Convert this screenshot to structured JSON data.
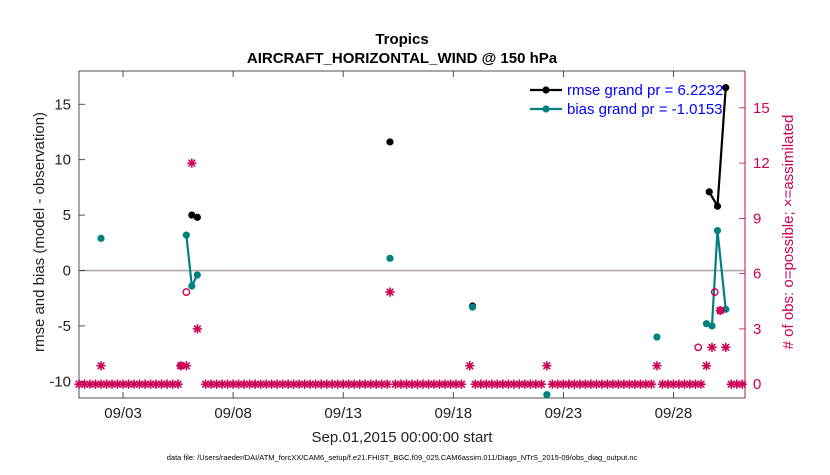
{
  "chart_data": {
    "type": "line",
    "title": "Tropics",
    "subtitle": "AIRCRAFT_HORIZONTAL_WIND @ 150 hPa",
    "xlabel": "Sep.01,2015 00:00:00 start",
    "ylabel": "rmse and bias (model - observation)",
    "ylabel_right": "# of obs: o=possible; ×=assimilated",
    "footer": "data file: /Users/raeder/DAI/ATM_forcXX/CAM6_setup/f.e21.FHIST_BGC.f09_025.CAM6assim.011/Diags_NTrS_2015-09/obs_diag_output.nc",
    "xlim": [
      1,
      31.25
    ],
    "ylim": [
      -11.5,
      18
    ],
    "ylim_right": [
      -0.75,
      17.0
    ],
    "x_ticks": [
      3,
      8,
      13,
      18,
      23,
      28
    ],
    "x_tick_labels": [
      "09/03",
      "09/08",
      "09/13",
      "09/18",
      "09/23",
      "09/28"
    ],
    "y_ticks": [
      -10,
      -5,
      0,
      5,
      10,
      15
    ],
    "y_tick_labels": [
      "-10",
      "-5",
      "0",
      "5",
      "10",
      "15"
    ],
    "y_right_ticks": [
      0,
      3,
      6,
      9,
      12,
      15
    ],
    "y_right_tick_labels": [
      "0",
      "3",
      "6",
      "9",
      "12",
      "15"
    ],
    "zero_line": 0,
    "legend_position": "top-right",
    "colors": {
      "rmse": "#000000",
      "bias": "#008080",
      "obs": "#cc0055",
      "legend_text": "#0000ff",
      "zero_line": "#b0a8a8"
    },
    "series": [
      {
        "name": "rmse grand pr = 6.2232",
        "axis": "left",
        "style": "line-dot",
        "points": [
          [
            6.125,
            5.0
          ],
          [
            6.375,
            4.8
          ],
          [
            15.125,
            11.6
          ],
          [
            18.875,
            -3.2
          ],
          [
            29.625,
            7.1
          ],
          [
            30.0,
            5.8
          ],
          [
            30.375,
            16.5
          ]
        ],
        "segments": [
          [
            [
              6.125,
              5.0
            ],
            [
              6.375,
              4.8
            ]
          ],
          [
            [
              29.625,
              7.1
            ],
            [
              30.0,
              5.8
            ],
            [
              30.375,
              16.5
            ]
          ]
        ]
      },
      {
        "name": "bias grand pr = -1.0153",
        "axis": "left",
        "style": "line-dot",
        "points": [
          [
            2.0,
            2.9
          ],
          [
            5.875,
            3.2
          ],
          [
            6.125,
            -1.4
          ],
          [
            6.375,
            -0.4
          ],
          [
            15.125,
            1.1
          ],
          [
            18.875,
            -3.3
          ],
          [
            22.25,
            -11.2
          ],
          [
            27.25,
            -6.0
          ],
          [
            29.5,
            -4.8
          ],
          [
            29.75,
            -5.0
          ],
          [
            30.0,
            3.6
          ],
          [
            30.375,
            -3.5
          ]
        ],
        "segments": [
          [
            [
              5.875,
              3.2
            ],
            [
              6.125,
              -1.4
            ],
            [
              6.375,
              -0.4
            ]
          ],
          [
            [
              29.5,
              -4.8
            ],
            [
              29.75,
              -5.0
            ],
            [
              30.0,
              3.6
            ],
            [
              30.375,
              -3.5
            ]
          ]
        ]
      },
      {
        "name": "possible",
        "axis": "right",
        "style": "circle",
        "points": [
          [
            5.625,
            1
          ],
          [
            5.875,
            5
          ],
          [
            29.125,
            2
          ],
          [
            29.875,
            5
          ],
          [
            30.125,
            4
          ]
        ]
      },
      {
        "name": "assimilated",
        "axis": "right",
        "style": "asterisk",
        "points": [
          [
            2.0,
            1
          ],
          [
            5.625,
            1
          ],
          [
            5.875,
            1
          ],
          [
            6.125,
            12
          ],
          [
            6.375,
            3
          ],
          [
            15.125,
            5
          ],
          [
            18.75,
            1
          ],
          [
            22.25,
            1
          ],
          [
            27.25,
            1
          ],
          [
            29.5,
            1
          ],
          [
            29.75,
            2
          ],
          [
            30.125,
            4
          ],
          [
            30.375,
            2
          ]
        ]
      },
      {
        "name": "assimilated-zero",
        "axis": "right",
        "style": "asterisk",
        "x_ranges": [
          [
            1.0,
            5.5
          ],
          [
            6.75,
            15.0
          ],
          [
            15.375,
            18.5
          ],
          [
            19.0,
            22.0
          ],
          [
            22.5,
            27.0
          ],
          [
            27.5,
            29.25
          ],
          [
            30.625,
            31.25
          ]
        ],
        "step": 0.25,
        "value": 0
      }
    ]
  }
}
